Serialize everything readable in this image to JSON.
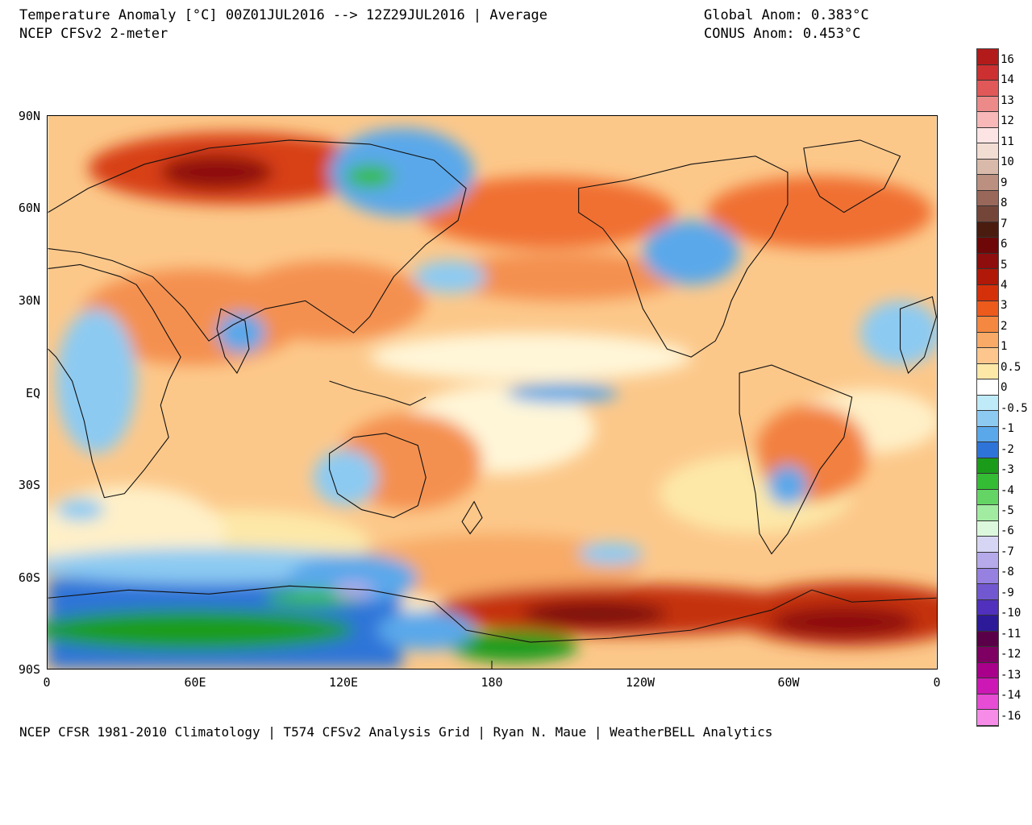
{
  "header": {
    "title": "Temperature Anomaly [°C] 00Z01JUL2016 --> 12Z29JUL2016 | Average",
    "subtitle": "NCEP CFSv2 2-meter",
    "global_anom": "Global Anom: 0.383°C",
    "conus_anom": "CONUS Anom: 0.453°C"
  },
  "footer": {
    "credits": "NCEP CFSR 1981-2010 Climatology | T574 CFSv2 Analysis Grid | Ryan N. Maue | WeatherBELL Analytics"
  },
  "axes": {
    "lat_labels": [
      "90N",
      "60N",
      "30N",
      "EQ",
      "30S",
      "60S",
      "90S"
    ],
    "lon_labels": [
      "0",
      "60E",
      "120E",
      "180",
      "120W",
      "60W",
      "0"
    ]
  },
  "colorbar": {
    "labels": [
      "16",
      "14",
      "13",
      "12",
      "11",
      "10",
      "9",
      "8",
      "7",
      "6",
      "5",
      "4",
      "3",
      "2",
      "1",
      "0.5",
      "0",
      "-0.5",
      "-1",
      "-2",
      "-3",
      "-4",
      "-5",
      "-6",
      "-7",
      "-8",
      "-9",
      "-10",
      "-11",
      "-12",
      "-13",
      "-14",
      "-16"
    ],
    "colors": [
      "#b31b1b",
      "#d63c3c",
      "#e66464",
      "#f08c8c",
      "#f8b4b4",
      "#fde2e2",
      "#f4e0d8",
      "#e2c4b6",
      "#c9a090",
      "#a87868",
      "#7d5040",
      "#5a2818",
      "#7a0a0a",
      "#9e1010",
      "#c41808",
      "#e83a0a",
      "#f46e28",
      "#f79c56",
      "#fbc884",
      "#fde8a6",
      "#ffffff",
      "#c6eefa",
      "#8fd0f4",
      "#5cacec",
      "#3478dc",
      "#1f5ec8",
      "#12a012",
      "#2fc02f",
      "#5cd85c",
      "#98ec98",
      "#d2f6d2",
      "#d8d8f6",
      "#b4acec",
      "#9080e0",
      "#6c58d0",
      "#4a30bc",
      "#2a1898",
      "#60004e",
      "#880068",
      "#b00090",
      "#d820c0",
      "#f058dc",
      "#f898ec"
    ],
    "swatches": [
      "#b31b1b",
      "#cc3030",
      "#e05858",
      "#ec8a8a",
      "#f8b8b8",
      "#fde4e4",
      "#f2ddd3",
      "#d9b9a9",
      "#bb9080",
      "#99685a",
      "#74463a",
      "#4a1c10",
      "#6e0808",
      "#8e0e0e",
      "#b01808",
      "#d4300a",
      "#ec5a1c",
      "#f48840",
      "#f8aa66",
      "#fcc68c",
      "#fde8a8",
      "#ffffff",
      "#bfeaf8",
      "#8ccaf2",
      "#5aa8ea",
      "#2e74d8",
      "#1a9c1a",
      "#34bc34",
      "#64d464",
      "#a2eca2",
      "#dcf8dc",
      "#d6d6f4",
      "#b6aaea",
      "#9680e0",
      "#7258d0",
      "#5030bc",
      "#2c1a98",
      "#5a0048",
      "#7e0062",
      "#a8008a",
      "#cc18b4",
      "#e64cd4",
      "#f68ce8"
    ]
  }
}
